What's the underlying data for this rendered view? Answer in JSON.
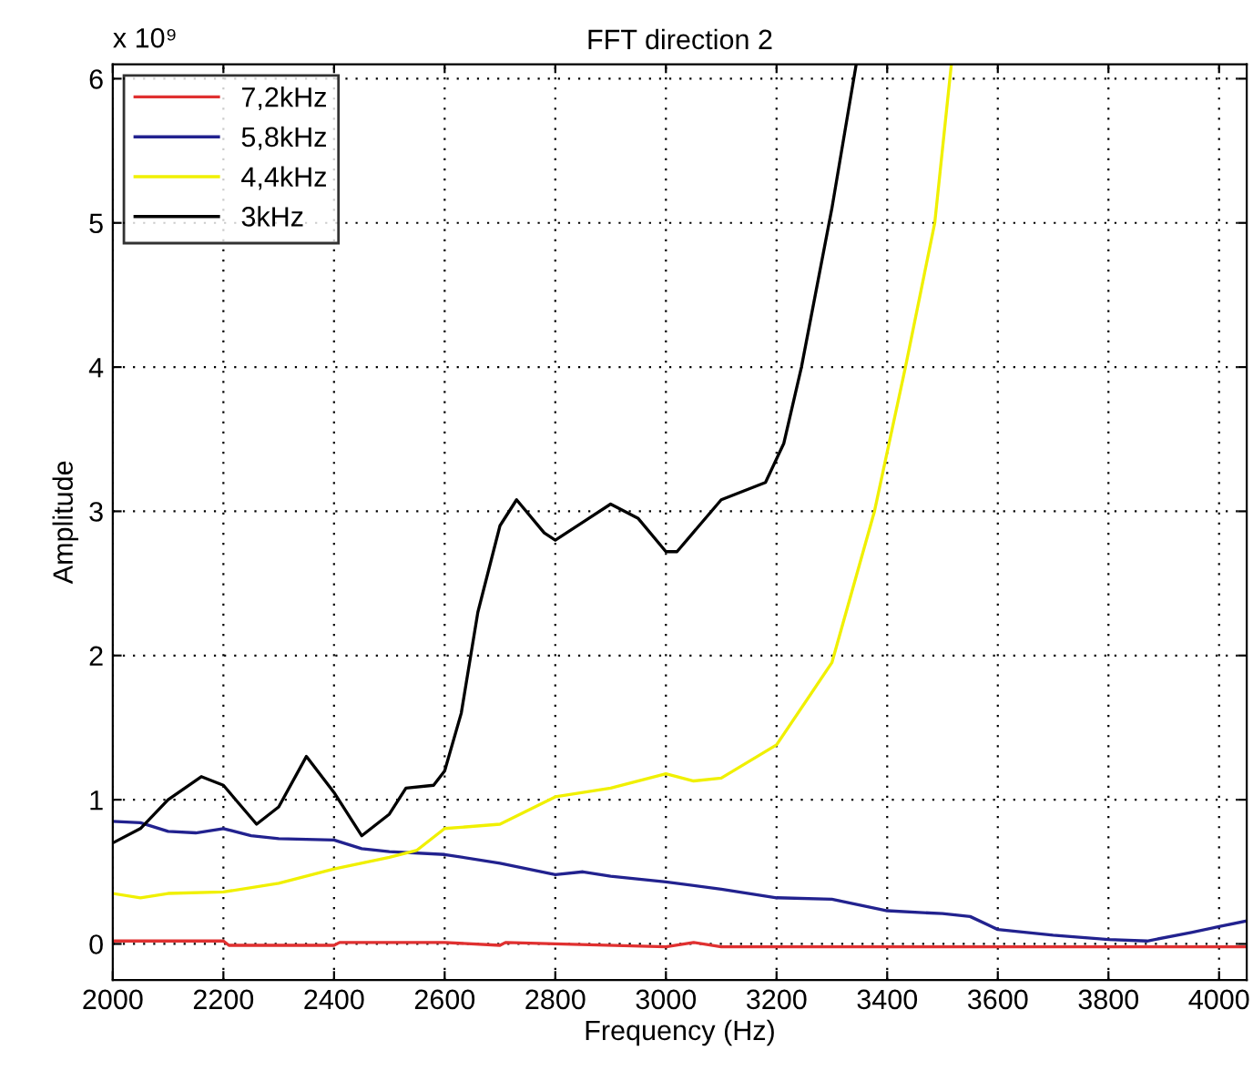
{
  "chart_data": {
    "type": "line",
    "title": "FFT direction 2",
    "xlabel": "Frequency (Hz)",
    "ylabel": "Amplitude",
    "annotations": [
      "x 10⁹"
    ],
    "xlim": [
      2000,
      4050
    ],
    "ylim": [
      -0.25,
      6.1
    ],
    "xticks": [
      2000,
      2200,
      2400,
      2600,
      2800,
      3000,
      3200,
      3400,
      3600,
      3800,
      4000
    ],
    "yticks": [
      0,
      1,
      2,
      3,
      4,
      5,
      6
    ],
    "grid": true,
    "legend": "top left",
    "line_style": "solid",
    "marker": "none",
    "series": [
      {
        "name": "7,2kHz",
        "color": "#e03030",
        "x": [
          2000,
          2200,
          2210,
          2400,
          2410,
          2600,
          2700,
          2710,
          2800,
          3000,
          3050,
          3100,
          4050
        ],
        "values": [
          0.02,
          0.02,
          -0.01,
          -0.01,
          0.01,
          0.01,
          -0.01,
          0.01,
          0.0,
          -0.02,
          0.01,
          -0.02,
          -0.02
        ]
      },
      {
        "name": "5,8kHz",
        "color": "#22228f",
        "x": [
          2000,
          2050,
          2100,
          2150,
          2200,
          2250,
          2300,
          2400,
          2450,
          2500,
          2600,
          2700,
          2800,
          2850,
          2900,
          3000,
          3100,
          3200,
          3300,
          3400,
          3500,
          3550,
          3600,
          3700,
          3800,
          3870,
          3950,
          4000,
          4050
        ],
        "values": [
          0.85,
          0.84,
          0.78,
          0.77,
          0.8,
          0.75,
          0.73,
          0.72,
          0.66,
          0.64,
          0.62,
          0.56,
          0.48,
          0.5,
          0.47,
          0.43,
          0.38,
          0.32,
          0.31,
          0.23,
          0.21,
          0.19,
          0.1,
          0.06,
          0.03,
          0.02,
          0.08,
          0.12,
          0.16
        ]
      },
      {
        "name": "4,4kHz",
        "color": "#f0f000",
        "x": [
          2000,
          2050,
          2100,
          2200,
          2300,
          2400,
          2500,
          2550,
          2600,
          2700,
          2800,
          2900,
          3000,
          3050,
          3100,
          3200,
          3300,
          3377,
          3433,
          3486,
          3516
        ],
        "values": [
          0.35,
          0.32,
          0.35,
          0.36,
          0.42,
          0.52,
          0.6,
          0.65,
          0.8,
          0.83,
          1.02,
          1.08,
          1.18,
          1.13,
          1.15,
          1.38,
          1.95,
          3.0,
          4.0,
          5.0,
          6.1
        ]
      },
      {
        "name": "3kHz",
        "color": "#000000",
        "x": [
          2000,
          2050,
          2100,
          2160,
          2200,
          2260,
          2300,
          2350,
          2400,
          2450,
          2500,
          2530,
          2580,
          2600,
          2630,
          2660,
          2700,
          2730,
          2780,
          2800,
          2860,
          2900,
          2950,
          3000,
          3020,
          3060,
          3100,
          3140,
          3180,
          3213,
          3245,
          3300,
          3344
        ],
        "values": [
          0.7,
          0.8,
          1.0,
          1.16,
          1.1,
          0.83,
          0.95,
          1.3,
          1.05,
          0.75,
          0.9,
          1.08,
          1.1,
          1.2,
          1.6,
          2.3,
          2.9,
          3.08,
          2.85,
          2.8,
          2.95,
          3.05,
          2.95,
          2.72,
          2.72,
          2.9,
          3.08,
          3.14,
          3.2,
          3.47,
          4.0,
          5.1,
          6.1
        ]
      }
    ]
  }
}
